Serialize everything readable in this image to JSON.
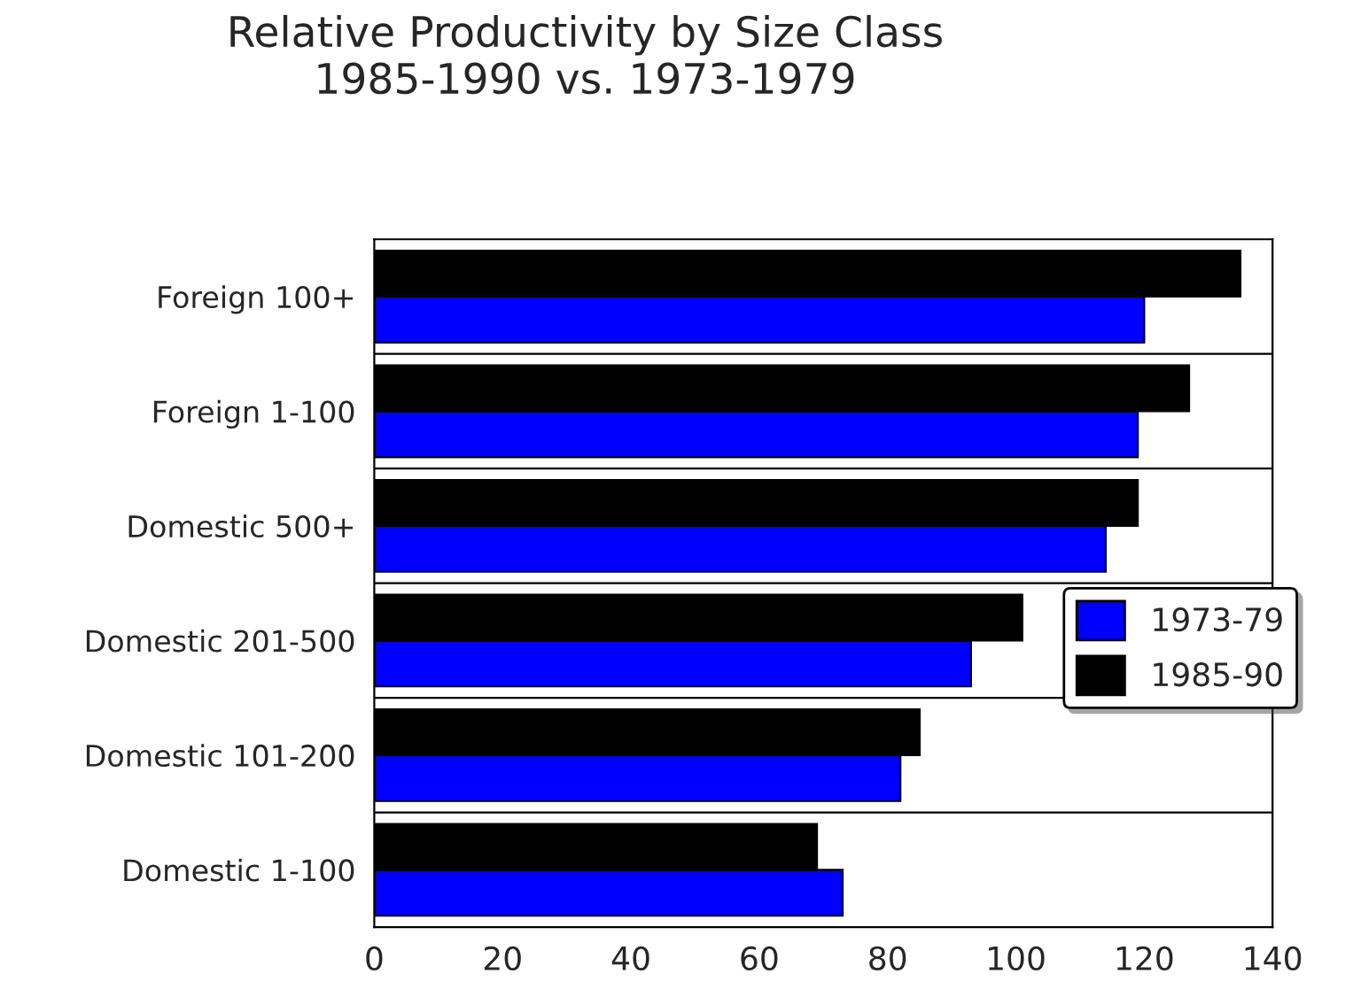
{
  "chart_data": {
    "type": "bar",
    "orientation": "horizontal",
    "title": "Relative Productivity by Size Class\n1985-1990 vs. 1973-1979",
    "categories": [
      "Foreign 100+",
      "Foreign 1-100",
      "Domestic 500+",
      "Domestic 201-500",
      "Domestic 101-200",
      "Domestic 1-100"
    ],
    "series": [
      {
        "name": "1973-79",
        "color": "#0000ff",
        "values": [
          120,
          119,
          114,
          93,
          82,
          73
        ]
      },
      {
        "name": "1985-90",
        "color": "#000000",
        "values": [
          135,
          127,
          119,
          101,
          85,
          69
        ]
      }
    ],
    "xlim": [
      0,
      140
    ],
    "xticks": [
      0,
      20,
      40,
      60,
      80,
      100,
      120,
      140
    ],
    "legend": "right"
  }
}
